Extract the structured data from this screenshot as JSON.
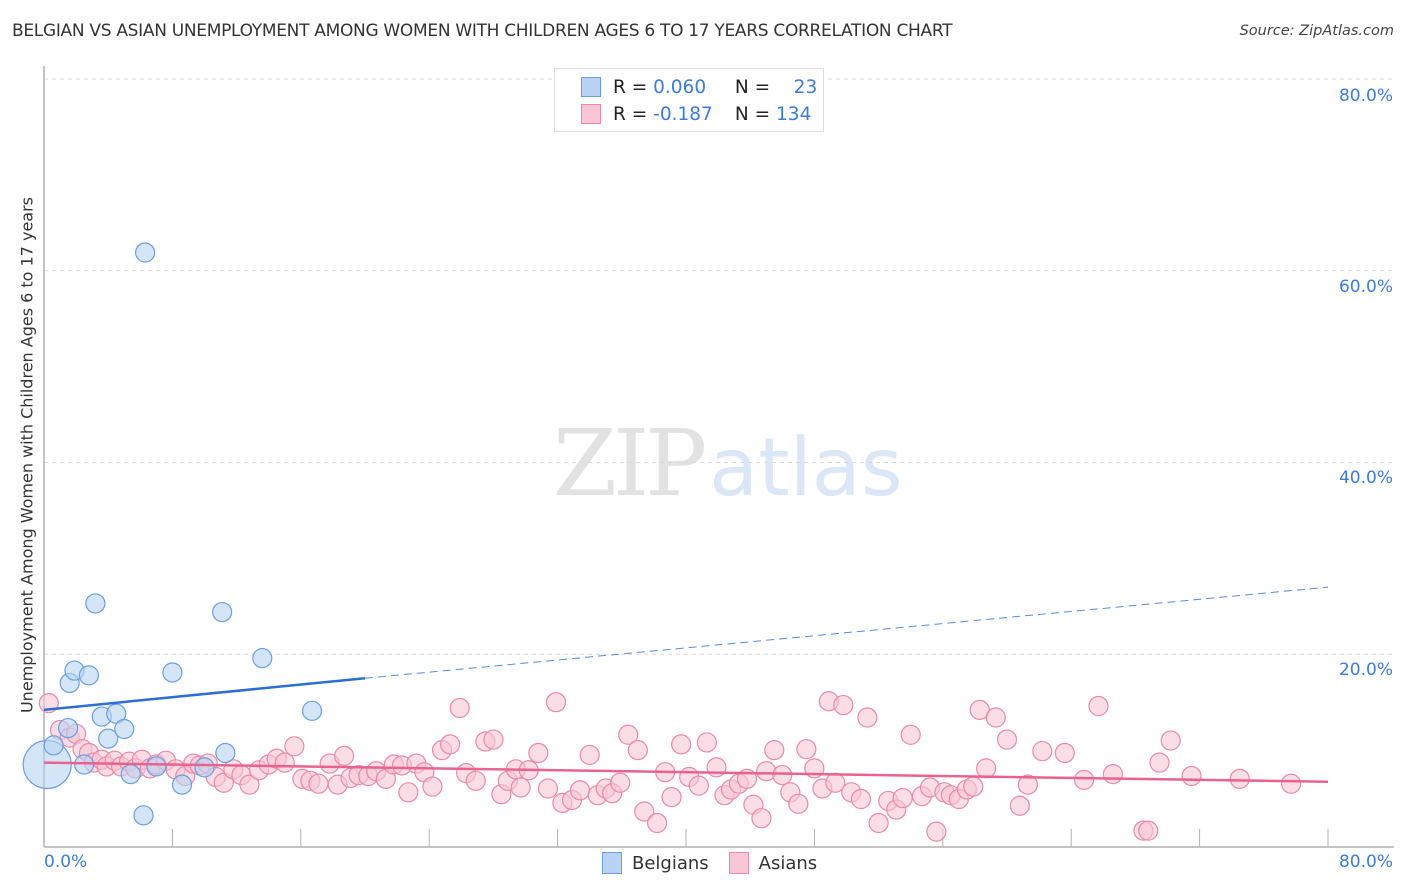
{
  "header": {
    "title": "BELGIAN VS ASIAN UNEMPLOYMENT AMONG WOMEN WITH CHILDREN AGES 6 TO 17 YEARS CORRELATION CHART",
    "source": "Source: ZipAtlas.com"
  },
  "watermark": {
    "zip": "ZIP",
    "atlas": "atlas"
  },
  "axes": {
    "ylabel": "Unemployment Among Women with Children Ages 6 to 17 years",
    "yticks": [
      "80.0%",
      "60.0%",
      "40.0%",
      "20.0%"
    ],
    "xtick_min": "0.0%",
    "xtick_max": "80.0%"
  },
  "stats": {
    "belgians": {
      "r_label": "R =",
      "r": "0.060",
      "n_label": "N =",
      "n": "23"
    },
    "asians": {
      "r_label": "R =",
      "r": "-0.187",
      "n_label": "N =",
      "n": "134"
    }
  },
  "legend": {
    "belgians": "Belgians",
    "asians": "Asians"
  },
  "colors": {
    "belgians_fill": "#b8d3f3",
    "belgians_stroke": "#6a9ee0",
    "belgians_line": "#2d6fd0",
    "asians_fill": "#f9c6d6",
    "asians_stroke": "#ea8aa8",
    "asians_line": "#e8638f",
    "accent_text": "#3f7bd8",
    "grid": "#d8d8d8"
  },
  "chart_data": {
    "type": "scatter",
    "title": "BELGIAN VS ASIAN UNEMPLOYMENT AMONG WOMEN WITH CHILDREN AGES 6 TO 17 YEARS CORRELATION CHART",
    "xlabel": "",
    "ylabel": "Unemployment Among Women with Children Ages 6 to 17 years",
    "xlim": [
      0,
      80
    ],
    "ylim": [
      0,
      80
    ],
    "yticks": [
      20,
      40,
      60,
      80
    ],
    "grid": true,
    "legend_position": "bottom",
    "series": [
      {
        "name": "Belgians",
        "r": 0.06,
        "n": 23,
        "trend": {
          "x0": 0,
          "y0": 14.2,
          "x1": 20,
          "y1": 17.5,
          "dashed_to_x": 80,
          "dashed_to_y": 27.0
        },
        "points": [
          [
            0.2,
            8.5,
            3
          ],
          [
            0.6,
            10.5
          ],
          [
            1.5,
            12.3
          ],
          [
            1.6,
            17.0
          ],
          [
            1.9,
            18.3
          ],
          [
            2.5,
            8.5
          ],
          [
            2.8,
            17.8
          ],
          [
            3.2,
            25.3
          ],
          [
            3.6,
            13.5
          ],
          [
            4.0,
            11.2
          ],
          [
            4.5,
            13.8
          ],
          [
            5.0,
            12.2
          ],
          [
            5.4,
            7.5
          ],
          [
            6.2,
            3.2
          ],
          [
            6.3,
            61.9
          ],
          [
            7.0,
            8.3
          ],
          [
            8.0,
            18.1
          ],
          [
            8.6,
            6.4
          ],
          [
            10.0,
            8.2
          ],
          [
            11.1,
            24.4
          ],
          [
            11.3,
            9.7
          ],
          [
            13.6,
            19.6
          ],
          [
            16.7,
            14.1
          ]
        ]
      },
      {
        "name": "Asians",
        "r": -0.187,
        "n": 134,
        "trend": {
          "x0": 0,
          "y0": 8.7,
          "x1": 80,
          "y1": 6.7
        },
        "points": [
          [
            0.3,
            14.9
          ],
          [
            1.0,
            12.1
          ],
          [
            1.6,
            11.3
          ],
          [
            2.0,
            11.7
          ],
          [
            2.4,
            10.1
          ],
          [
            2.8,
            9.7
          ],
          [
            3.1,
            8.7
          ],
          [
            3.6,
            9.0
          ],
          [
            3.9,
            8.3
          ],
          [
            4.4,
            8.9
          ],
          [
            4.8,
            8.3
          ],
          [
            5.3,
            8.8
          ],
          [
            5.7,
            8.1
          ],
          [
            6.1,
            9.0
          ],
          [
            6.6,
            8.1
          ],
          [
            7.0,
            8.5
          ],
          [
            7.6,
            8.9
          ],
          [
            8.2,
            8.0
          ],
          [
            8.8,
            7.3
          ],
          [
            9.3,
            8.6
          ],
          [
            9.7,
            8.4
          ],
          [
            10.2,
            8.6
          ],
          [
            10.7,
            7.2
          ],
          [
            11.2,
            6.6
          ],
          [
            11.8,
            8.0
          ],
          [
            12.3,
            7.4
          ],
          [
            12.8,
            6.4
          ],
          [
            13.4,
            7.9
          ],
          [
            14.0,
            8.5
          ],
          [
            14.5,
            9.1
          ],
          [
            15.0,
            8.7
          ],
          [
            15.6,
            10.4
          ],
          [
            16.1,
            7.0
          ],
          [
            16.6,
            6.8
          ],
          [
            17.1,
            6.5
          ],
          [
            17.8,
            8.6
          ],
          [
            18.3,
            6.4
          ],
          [
            18.7,
            9.4
          ],
          [
            19.1,
            7.1
          ],
          [
            19.6,
            7.4
          ],
          [
            20.2,
            7.3
          ],
          [
            20.7,
            7.8
          ],
          [
            21.3,
            7.0
          ],
          [
            21.8,
            8.5
          ],
          [
            22.3,
            8.4
          ],
          [
            22.7,
            5.6
          ],
          [
            23.2,
            8.6
          ],
          [
            23.7,
            7.7
          ],
          [
            24.2,
            6.2
          ],
          [
            24.8,
            10.0
          ],
          [
            25.3,
            10.6
          ],
          [
            25.9,
            14.4
          ],
          [
            26.3,
            7.6
          ],
          [
            26.9,
            6.8
          ],
          [
            27.5,
            10.9
          ],
          [
            28.0,
            11.1
          ],
          [
            28.5,
            5.4
          ],
          [
            28.9,
            6.8
          ],
          [
            29.4,
            8.0
          ],
          [
            29.7,
            6.1
          ],
          [
            30.2,
            7.9
          ],
          [
            30.8,
            9.7
          ],
          [
            31.4,
            6.0
          ],
          [
            31.9,
            15.0
          ],
          [
            32.3,
            4.5
          ],
          [
            32.9,
            4.8
          ],
          [
            33.4,
            5.8
          ],
          [
            34.0,
            9.5
          ],
          [
            34.5,
            5.3
          ],
          [
            35.0,
            6.0
          ],
          [
            35.4,
            5.5
          ],
          [
            35.9,
            6.6
          ],
          [
            36.4,
            11.6
          ],
          [
            37.0,
            10.0
          ],
          [
            37.4,
            3.6
          ],
          [
            38.2,
            2.4
          ],
          [
            38.7,
            7.7
          ],
          [
            39.1,
            5.1
          ],
          [
            39.7,
            10.6
          ],
          [
            40.2,
            7.2
          ],
          [
            40.8,
            6.3
          ],
          [
            41.3,
            10.8
          ],
          [
            41.9,
            8.2
          ],
          [
            42.4,
            5.3
          ],
          [
            42.8,
            5.9
          ],
          [
            43.3,
            6.5
          ],
          [
            43.8,
            7.0
          ],
          [
            44.2,
            4.3
          ],
          [
            44.7,
            2.9
          ],
          [
            45.0,
            7.8
          ],
          [
            45.5,
            10.0
          ],
          [
            46.0,
            7.4
          ],
          [
            46.5,
            5.6
          ],
          [
            47.0,
            4.4
          ],
          [
            47.5,
            10.1
          ],
          [
            48.0,
            8.1
          ],
          [
            48.5,
            6.0
          ],
          [
            48.9,
            15.1
          ],
          [
            49.3,
            6.6
          ],
          [
            49.8,
            14.7
          ],
          [
            50.3,
            5.6
          ],
          [
            50.9,
            4.9
          ],
          [
            51.3,
            13.4
          ],
          [
            52.0,
            2.4
          ],
          [
            52.6,
            4.7
          ],
          [
            53.1,
            3.8
          ],
          [
            53.5,
            5.0
          ],
          [
            54.0,
            11.6
          ],
          [
            54.7,
            5.2
          ],
          [
            55.2,
            6.1
          ],
          [
            55.6,
            1.5
          ],
          [
            56.1,
            5.6
          ],
          [
            56.5,
            5.3
          ],
          [
            57.0,
            4.9
          ],
          [
            57.5,
            5.9
          ],
          [
            57.9,
            6.2
          ],
          [
            58.3,
            14.2
          ],
          [
            58.7,
            8.1
          ],
          [
            59.3,
            13.4
          ],
          [
            60.0,
            11.1
          ],
          [
            60.8,
            4.2
          ],
          [
            61.3,
            6.4
          ],
          [
            62.2,
            9.9
          ],
          [
            63.6,
            9.7
          ],
          [
            64.8,
            6.9
          ],
          [
            65.7,
            14.6
          ],
          [
            68.5,
            1.6
          ],
          [
            68.8,
            1.6
          ],
          [
            69.5,
            8.7
          ],
          [
            70.2,
            11.0
          ],
          [
            77.7,
            6.5
          ],
          [
            74.5,
            7.0
          ],
          [
            71.5,
            7.3
          ],
          [
            66.6,
            7.5
          ]
        ]
      }
    ]
  }
}
